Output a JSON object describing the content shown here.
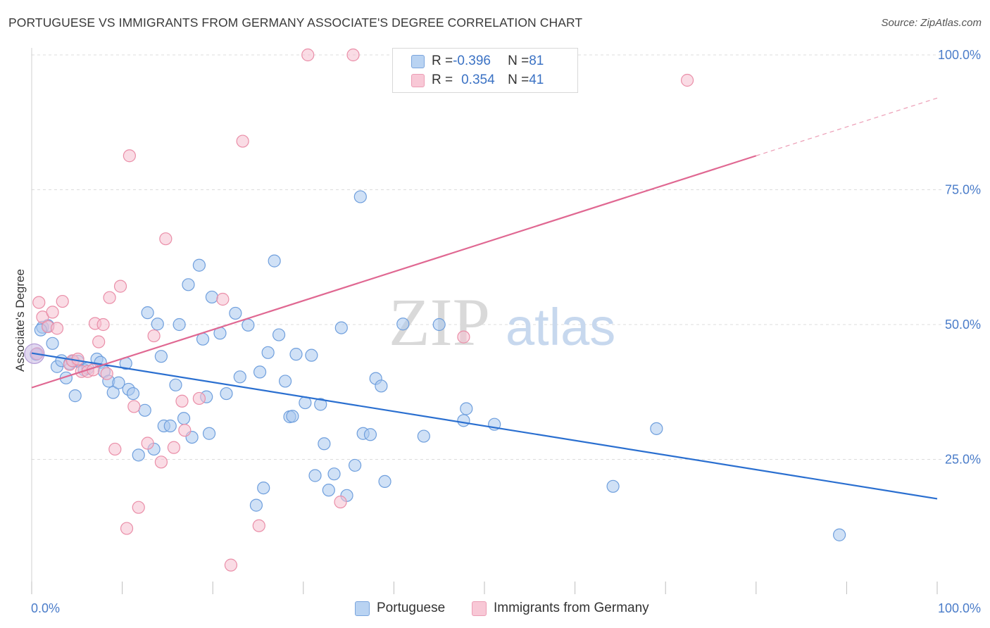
{
  "title": "PORTUGUESE VS IMMIGRANTS FROM GERMANY ASSOCIATE'S DEGREE CORRELATION CHART",
  "source": "Source: ZipAtlas.com",
  "watermark": {
    "zip": "ZIP",
    "atlas": "atlas"
  },
  "legend_top": [
    {
      "r_label": "R = ",
      "r_value": "-0.396",
      "n_label": "N = ",
      "n_value": "81"
    },
    {
      "r_label": "R = ",
      "r_value": "0.354",
      "n_label": "N = ",
      "n_value": "41"
    }
  ],
  "colors": {
    "blue_fill": "#a9c8ef",
    "blue_stroke": "#6f9fdd",
    "blue_line": "#2a6fd0",
    "pink_fill": "#f6bfcf",
    "pink_stroke": "#ea8ea8",
    "pink_line": "#e06892",
    "tick_label": "#4a7cc9",
    "grid": "#dcdcdc"
  },
  "chart_data": {
    "type": "scatter",
    "title": "PORTUGUESE VS IMMIGRANTS FROM GERMANY ASSOCIATE'S DEGREE CORRELATION CHART",
    "xlabel": "",
    "ylabel": "Associate's Degree",
    "xlim": [
      0,
      100
    ],
    "ylim": [
      0,
      100
    ],
    "x_tick_labels": [
      "0.0%",
      "100.0%"
    ],
    "y_ticks": [
      25,
      50,
      75,
      100
    ],
    "y_tick_labels": [
      "25.0%",
      "50.0%",
      "75.0%",
      "100.0%"
    ],
    "grid": true,
    "legend_position": "bottom",
    "series": [
      {
        "name": "Portuguese",
        "color": "#a9c8ef",
        "r": -0.396,
        "n": 81,
        "trend": {
          "x0": 0,
          "y0": 44.7,
          "x1": 100,
          "y1": 17.7
        },
        "points": [
          [
            0.5,
            44.5
          ],
          [
            1.2,
            49.5
          ],
          [
            1.8,
            49.8
          ],
          [
            2.3,
            46.5
          ],
          [
            2.8,
            42.2
          ],
          [
            3.3,
            43.3
          ],
          [
            3.8,
            40.1
          ],
          [
            4.2,
            42.8
          ],
          [
            4.6,
            43.2
          ],
          [
            4.8,
            36.8
          ],
          [
            5.1,
            43.2
          ],
          [
            5.8,
            41.6
          ],
          [
            6.2,
            41.9
          ],
          [
            7.2,
            43.6
          ],
          [
            7.6,
            43.0
          ],
          [
            8.0,
            41.3
          ],
          [
            8.5,
            39.5
          ],
          [
            9.0,
            37.4
          ],
          [
            9.6,
            39.2
          ],
          [
            10.4,
            42.8
          ],
          [
            10.7,
            38.0
          ],
          [
            11.2,
            37.2
          ],
          [
            11.8,
            25.8
          ],
          [
            12.5,
            34.1
          ],
          [
            12.8,
            52.2
          ],
          [
            13.5,
            26.9
          ],
          [
            13.9,
            50.1
          ],
          [
            14.3,
            44.1
          ],
          [
            14.6,
            31.2
          ],
          [
            15.3,
            31.2
          ],
          [
            15.9,
            38.8
          ],
          [
            16.3,
            50.0
          ],
          [
            16.8,
            32.6
          ],
          [
            17.3,
            57.4
          ],
          [
            17.7,
            29.1
          ],
          [
            18.5,
            61.0
          ],
          [
            18.9,
            47.3
          ],
          [
            19.3,
            36.6
          ],
          [
            19.6,
            29.8
          ],
          [
            19.9,
            55.1
          ],
          [
            20.8,
            48.4
          ],
          [
            21.5,
            37.2
          ],
          [
            22.5,
            52.1
          ],
          [
            23.0,
            40.3
          ],
          [
            23.9,
            49.9
          ],
          [
            24.8,
            16.5
          ],
          [
            25.2,
            41.2
          ],
          [
            25.6,
            19.7
          ],
          [
            26.1,
            44.8
          ],
          [
            26.8,
            61.8
          ],
          [
            27.3,
            48.1
          ],
          [
            28.0,
            39.5
          ],
          [
            28.5,
            32.9
          ],
          [
            28.8,
            33.0
          ],
          [
            29.2,
            44.5
          ],
          [
            30.2,
            35.5
          ],
          [
            30.9,
            44.3
          ],
          [
            31.3,
            22.0
          ],
          [
            31.9,
            35.2
          ],
          [
            32.3,
            27.9
          ],
          [
            32.8,
            19.3
          ],
          [
            33.4,
            22.3
          ],
          [
            34.2,
            49.4
          ],
          [
            34.8,
            18.3
          ],
          [
            35.7,
            23.9
          ],
          [
            36.3,
            73.7
          ],
          [
            36.6,
            29.8
          ],
          [
            37.4,
            29.6
          ],
          [
            38.0,
            40.0
          ],
          [
            38.6,
            38.6
          ],
          [
            39.0,
            20.9
          ],
          [
            41.0,
            50.1
          ],
          [
            43.3,
            29.3
          ],
          [
            45.0,
            50.0
          ],
          [
            47.7,
            32.2
          ],
          [
            48.0,
            34.4
          ],
          [
            51.1,
            31.5
          ],
          [
            69.0,
            30.7
          ],
          [
            64.2,
            20.0
          ],
          [
            89.2,
            11.0
          ],
          [
            1.0,
            49.0
          ]
        ]
      },
      {
        "name": "Immigrants from Germany",
        "color": "#f6bfcf",
        "r": 0.354,
        "n": 41,
        "trend": {
          "x0": 0,
          "y0": 38.3,
          "x1": 80,
          "y1": 81.3,
          "dash_to_x": 100,
          "dash_to_y": 92.0
        },
        "points": [
          [
            0.6,
            44.6
          ],
          [
            0.8,
            54.1
          ],
          [
            1.2,
            51.4
          ],
          [
            1.8,
            49.6
          ],
          [
            2.3,
            52.3
          ],
          [
            2.8,
            49.3
          ],
          [
            3.4,
            54.3
          ],
          [
            4.2,
            42.6
          ],
          [
            4.5,
            43.3
          ],
          [
            5.1,
            43.6
          ],
          [
            5.5,
            41.3
          ],
          [
            6.2,
            41.3
          ],
          [
            6.8,
            41.6
          ],
          [
            7.0,
            50.2
          ],
          [
            7.4,
            46.8
          ],
          [
            7.9,
            50.0
          ],
          [
            8.3,
            40.9
          ],
          [
            8.6,
            55.0
          ],
          [
            9.2,
            26.9
          ],
          [
            9.8,
            57.1
          ],
          [
            10.5,
            12.2
          ],
          [
            10.8,
            81.3
          ],
          [
            11.3,
            34.8
          ],
          [
            11.8,
            16.1
          ],
          [
            12.8,
            28.0
          ],
          [
            13.5,
            47.9
          ],
          [
            14.3,
            24.5
          ],
          [
            14.8,
            65.9
          ],
          [
            15.7,
            27.2
          ],
          [
            16.6,
            35.8
          ],
          [
            16.9,
            30.4
          ],
          [
            18.5,
            36.3
          ],
          [
            21.1,
            54.7
          ],
          [
            22.0,
            5.4
          ],
          [
            23.3,
            84.0
          ],
          [
            25.1,
            12.7
          ],
          [
            30.5,
            100.0
          ],
          [
            34.1,
            17.1
          ],
          [
            35.5,
            100.0
          ],
          [
            47.7,
            47.7
          ],
          [
            72.4,
            95.3
          ]
        ]
      }
    ]
  }
}
